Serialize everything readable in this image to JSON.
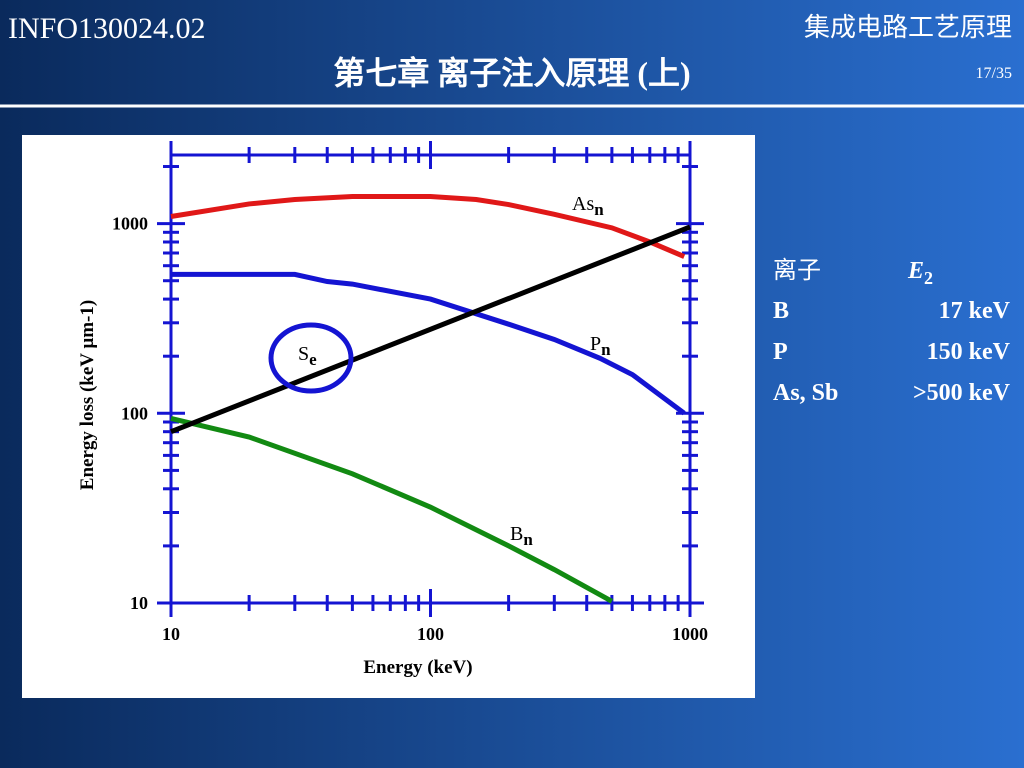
{
  "header": {
    "course": "INFO130024.02",
    "subject": "集成电路工艺原理",
    "title": "第七章 离子注入原理  (上)",
    "page": "17/35"
  },
  "chart_data": {
    "type": "line",
    "xlabel": "Energy (keV)",
    "ylabel": "Energy loss (keV μm-1)",
    "xscale": "log",
    "yscale": "log",
    "minor_ticks": true,
    "xlim": [
      10,
      1000
    ],
    "ylim": [
      10,
      2300
    ],
    "xticks": [
      10,
      100,
      1000
    ],
    "yticks": [
      10,
      100,
      1000
    ],
    "series": [
      {
        "name": "As",
        "subscript": "n",
        "color": "#e01818",
        "x": [
          10,
          20,
          30,
          50,
          100,
          150,
          200,
          300,
          500,
          700,
          950
        ],
        "values": [
          1090,
          1270,
          1340,
          1390,
          1390,
          1340,
          1260,
          1120,
          950,
          800,
          670
        ]
      },
      {
        "name": "P",
        "subscript": "n",
        "color": "#1414d2",
        "x": [
          10,
          30,
          40,
          50,
          100,
          200,
          300,
          450,
          600,
          950
        ],
        "values": [
          540,
          540,
          495,
          480,
          400,
          295,
          245,
          195,
          160,
          100
        ]
      },
      {
        "name": "B",
        "subscript": "n",
        "color": "#128a12",
        "x": [
          10,
          20,
          50,
          100,
          200,
          300,
          500
        ],
        "values": [
          94,
          75,
          48,
          32,
          20,
          15,
          10.2
        ]
      },
      {
        "name": "S",
        "subscript": "e",
        "color": "#000000",
        "x": [
          10,
          1000
        ],
        "values": [
          80,
          960
        ]
      }
    ]
  },
  "ions": {
    "header": [
      "离子",
      "E",
      "2"
    ],
    "rows": [
      [
        "B",
        "17 keV"
      ],
      [
        "P",
        "150 keV"
      ],
      [
        "As, Sb",
        ">500 keV"
      ]
    ]
  }
}
